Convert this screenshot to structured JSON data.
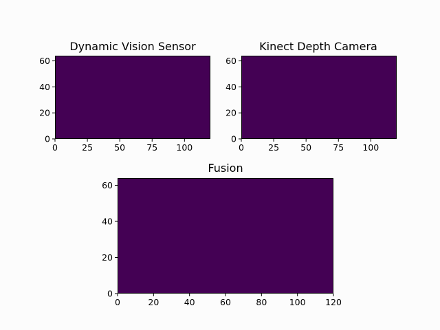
{
  "chart_data": [
    {
      "type": "heatmap",
      "title": "Dynamic Vision Sensor",
      "xlim": [
        0,
        120
      ],
      "ylim": [
        0,
        64
      ],
      "x_ticks": [
        0,
        25,
        50,
        75,
        100
      ],
      "y_ticks": [
        0,
        20,
        40,
        60
      ],
      "values": "uniform 0 (all cells at minimum of colormap)",
      "fill_color": "#440154"
    },
    {
      "type": "heatmap",
      "title": "Kinect Depth Camera",
      "xlim": [
        0,
        120
      ],
      "ylim": [
        0,
        64
      ],
      "x_ticks": [
        0,
        25,
        50,
        75,
        100
      ],
      "y_ticks": [
        0,
        20,
        40,
        60
      ],
      "values": "uniform 0 (all cells at minimum of colormap)",
      "fill_color": "#440154"
    },
    {
      "type": "heatmap",
      "title": "Fusion",
      "xlim": [
        0,
        120
      ],
      "ylim": [
        0,
        64
      ],
      "x_ticks": [
        0,
        20,
        40,
        60,
        80,
        100,
        120
      ],
      "y_ticks": [
        0,
        20,
        40,
        60
      ],
      "values": "uniform 0 (all cells at minimum of colormap)",
      "fill_color": "#440154"
    }
  ]
}
